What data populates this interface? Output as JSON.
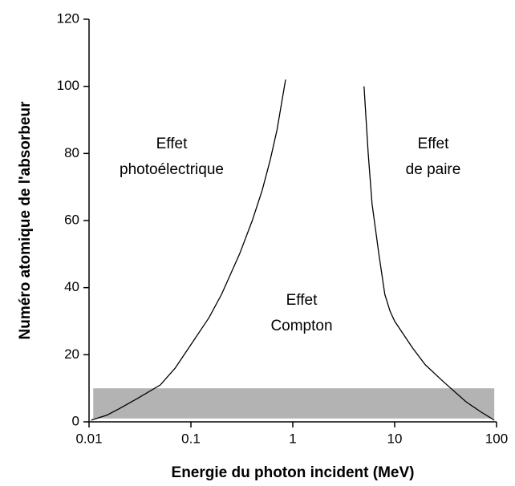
{
  "chart_data": {
    "type": "line",
    "xscale": "log",
    "xlabel": "Energie du photon incident (MeV)",
    "ylabel": "Numéro atomique de l'absorbeur",
    "xlim": [
      0.01,
      100
    ],
    "xticks": [
      0.01,
      0.1,
      1,
      10,
      100
    ],
    "ylim": [
      0,
      120
    ],
    "yticks": [
      0,
      20,
      40,
      60,
      80,
      100,
      120
    ],
    "grid": false,
    "band": {
      "x": [
        0.011,
        95
      ],
      "y": [
        1,
        10
      ],
      "color": "#b3b3b3"
    },
    "series": [
      {
        "color": "#000000",
        "x": [
          0.0105,
          0.015,
          0.02,
          0.03,
          0.05,
          0.07,
          0.1,
          0.15,
          0.2,
          0.3,
          0.4,
          0.5,
          0.6,
          0.7,
          0.85
        ],
        "values": [
          0.5,
          2,
          4,
          7,
          11,
          16,
          23,
          31,
          38,
          50,
          60,
          69,
          78,
          87,
          102
        ]
      },
      {
        "color": "#000000",
        "x": [
          5,
          5.5,
          6,
          7,
          8,
          9,
          10,
          15,
          20,
          30,
          50,
          70,
          95
        ],
        "values": [
          100,
          80,
          65,
          50,
          38,
          33,
          30,
          22,
          17,
          12,
          6,
          3,
          0.5
        ]
      }
    ],
    "annotations": [
      [
        "Effet",
        "photoélectrique"
      ],
      [
        "Effet",
        "de paire"
      ],
      [
        "Effet",
        "Compton"
      ]
    ]
  }
}
